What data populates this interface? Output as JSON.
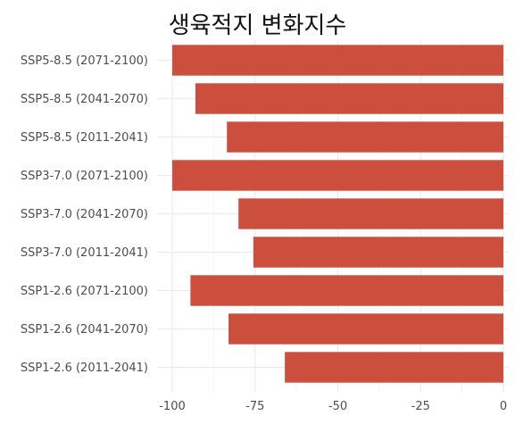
{
  "chart_data": {
    "type": "bar",
    "orientation": "horizontal",
    "title": "생육적지 변화지수",
    "xlabel": "",
    "ylabel": "",
    "xlim": [
      -100,
      0
    ],
    "x_ticks": [
      -100,
      -75,
      -50,
      -25,
      0
    ],
    "grid": true,
    "categories": [
      "SSP5-8.5 (2071-2100)",
      "SSP5-8.5 (2041-2070)",
      "SSP5-8.5 (2011-2041)",
      "SSP3-7.0 (2071-2100)",
      "SSP3-7.0 (2041-2070)",
      "SSP3-7.0 (2011-2041)",
      "SSP1-2.6 (2071-2100)",
      "SSP1-2.6 (2041-2070)",
      "SSP1-2.6 (2011-2041)"
    ],
    "values": [
      -100,
      -93,
      -83.5,
      -100,
      -80,
      -75.5,
      -94.5,
      -83,
      -66
    ],
    "bar_color": "#cb4f3c"
  }
}
